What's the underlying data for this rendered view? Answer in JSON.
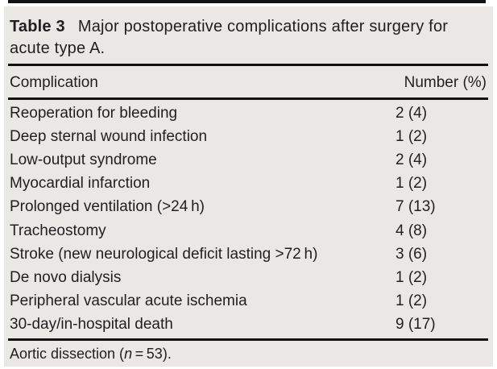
{
  "colors": {
    "page_bg": "#ffffff",
    "panel_bg": "#e9e8e5",
    "text": "#1f1f1f",
    "rule": "#121212"
  },
  "table": {
    "title_label": "Table 3",
    "title_text": "Major postoperative complications after surgery for acute type A.",
    "header": {
      "complication": "Complication",
      "number": "Number (%)"
    },
    "rows": [
      {
        "complication": "Reoperation for bleeding",
        "number": "2 (4)"
      },
      {
        "complication": "Deep sternal wound infection",
        "number": "1 (2)"
      },
      {
        "complication": "Low-output syndrome",
        "number": "2 (4)"
      },
      {
        "complication": "Myocardial infarction",
        "number": "1 (2)"
      },
      {
        "complication": "Prolonged ventilation (>24 h)",
        "number": "7 (13)"
      },
      {
        "complication": "Tracheostomy",
        "number": "4 (8)"
      },
      {
        "complication": "Stroke (new neurological deficit lasting >72 h)",
        "number": "3 (6)"
      },
      {
        "complication": "De novo dialysis",
        "number": "1 (2)"
      },
      {
        "complication": "Peripheral vascular acute ischemia",
        "number": "1 (2)"
      },
      {
        "complication": "30-day/in-hospital death",
        "number": "9 (17)"
      }
    ],
    "footnote": {
      "pre": "Aortic dissection (",
      "symbol": "n",
      "post": " = 53)."
    }
  }
}
